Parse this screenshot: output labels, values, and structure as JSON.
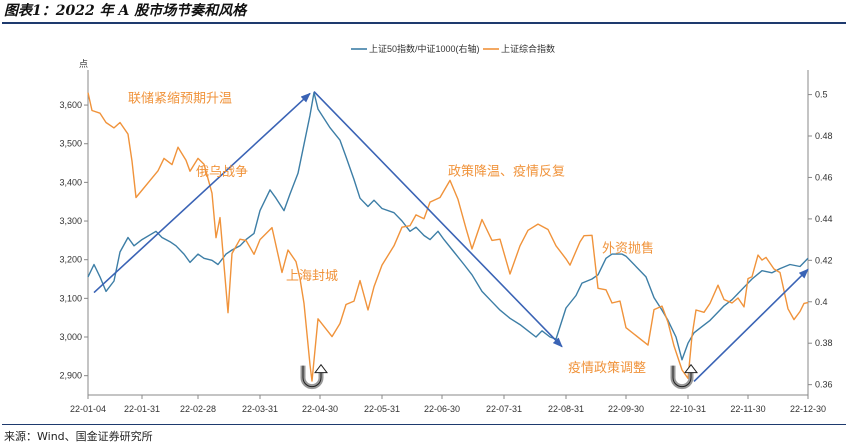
{
  "title": "图表1：2022 年 A 股市场节奏和风格",
  "source": "来源：Wind、国金证券研究所",
  "chart_data": {
    "type": "line",
    "left_axis_label": "点",
    "xlim": [
      "2022-01-04",
      "2022-12-30"
    ],
    "x_ticks": [
      {
        "label": "22-01-04",
        "date": "2022-01-04"
      },
      {
        "label": "22-01-31",
        "date": "2022-01-31"
      },
      {
        "label": "22-02-28",
        "date": "2022-02-28"
      },
      {
        "label": "22-03-31",
        "date": "2022-03-31"
      },
      {
        "label": "22-04-30",
        "date": "2022-04-30"
      },
      {
        "label": "22-05-31",
        "date": "2022-05-31"
      },
      {
        "label": "22-06-30",
        "date": "2022-06-30"
      },
      {
        "label": "22-07-31",
        "date": "2022-07-31"
      },
      {
        "label": "22-08-31",
        "date": "2022-08-31"
      },
      {
        "label": "22-09-30",
        "date": "2022-09-30"
      },
      {
        "label": "22-10-31",
        "date": "2022-10-31"
      },
      {
        "label": "22-11-30",
        "date": "2022-11-30"
      },
      {
        "label": "22-12-30",
        "date": "2022-12-30"
      }
    ],
    "left_ylim": [
      2850,
      3670
    ],
    "left_ticks": [
      "2,900",
      "3,000",
      "3,100",
      "3,200",
      "3,300",
      "3,400",
      "3,500",
      "3,600"
    ],
    "right_ylim": [
      0.355,
      0.508
    ],
    "right_ticks": [
      "0.36",
      "0.38",
      "0.4",
      "0.42",
      "0.44",
      "0.46",
      "0.48",
      "0.5"
    ],
    "series": [
      {
        "name": "上证50指数/中证1000(右轴)",
        "axis": "right",
        "color": "#3d7ea6",
        "points": [
          [
            "2022-01-04",
            0.412
          ],
          [
            "2022-01-07",
            0.418
          ],
          [
            "2022-01-10",
            0.412
          ],
          [
            "2022-01-13",
            0.405
          ],
          [
            "2022-01-17",
            0.41
          ],
          [
            "2022-01-20",
            0.424
          ],
          [
            "2022-01-24",
            0.431
          ],
          [
            "2022-01-27",
            0.427
          ],
          [
            "2022-01-31",
            0.43
          ],
          [
            "2022-02-07",
            0.434
          ],
          [
            "2022-02-10",
            0.431
          ],
          [
            "2022-02-14",
            0.429
          ],
          [
            "2022-02-17",
            0.427
          ],
          [
            "2022-02-21",
            0.423
          ],
          [
            "2022-02-24",
            0.419
          ],
          [
            "2022-02-28",
            0.423
          ],
          [
            "2022-03-03",
            0.421
          ],
          [
            "2022-03-07",
            0.42
          ],
          [
            "2022-03-10",
            0.418
          ],
          [
            "2022-03-14",
            0.423
          ],
          [
            "2022-03-17",
            0.425
          ],
          [
            "2022-03-21",
            0.427
          ],
          [
            "2022-03-24",
            0.43
          ],
          [
            "2022-03-28",
            0.433
          ],
          [
            "2022-03-31",
            0.444
          ],
          [
            "2022-04-05",
            0.454
          ],
          [
            "2022-04-08",
            0.45
          ],
          [
            "2022-04-12",
            0.444
          ],
          [
            "2022-04-15",
            0.452
          ],
          [
            "2022-04-19",
            0.462
          ],
          [
            "2022-04-22",
            0.476
          ],
          [
            "2022-04-25",
            0.49
          ],
          [
            "2022-04-27",
            0.501
          ],
          [
            "2022-04-29",
            0.493
          ],
          [
            "2022-05-05",
            0.484
          ],
          [
            "2022-05-10",
            0.478
          ],
          [
            "2022-05-13",
            0.47
          ],
          [
            "2022-05-17",
            0.459
          ],
          [
            "2022-05-20",
            0.45
          ],
          [
            "2022-05-24",
            0.446
          ],
          [
            "2022-05-27",
            0.449
          ],
          [
            "2022-05-31",
            0.445
          ],
          [
            "2022-06-06",
            0.443
          ],
          [
            "2022-06-10",
            0.439
          ],
          [
            "2022-06-14",
            0.434
          ],
          [
            "2022-06-17",
            0.436
          ],
          [
            "2022-06-21",
            0.432
          ],
          [
            "2022-06-24",
            0.43
          ],
          [
            "2022-06-28",
            0.434
          ],
          [
            "2022-07-01",
            0.43
          ],
          [
            "2022-07-06",
            0.424
          ],
          [
            "2022-07-11",
            0.418
          ],
          [
            "2022-07-15",
            0.413
          ],
          [
            "2022-07-20",
            0.405
          ],
          [
            "2022-07-25",
            0.4
          ],
          [
            "2022-07-29",
            0.396
          ],
          [
            "2022-08-03",
            0.392
          ],
          [
            "2022-08-08",
            0.389
          ],
          [
            "2022-08-12",
            0.386
          ],
          [
            "2022-08-16",
            0.383
          ],
          [
            "2022-08-19",
            0.386
          ],
          [
            "2022-08-23",
            0.383
          ],
          [
            "2022-08-26",
            0.382
          ],
          [
            "2022-08-31",
            0.397
          ],
          [
            "2022-09-05",
            0.403
          ],
          [
            "2022-09-08",
            0.409
          ],
          [
            "2022-09-13",
            0.411
          ],
          [
            "2022-09-16",
            0.413
          ],
          [
            "2022-09-20",
            0.421
          ],
          [
            "2022-09-23",
            0.423
          ],
          [
            "2022-09-28",
            0.423
          ],
          [
            "2022-09-30",
            0.422
          ],
          [
            "2022-10-10",
            0.412
          ],
          [
            "2022-10-14",
            0.402
          ],
          [
            "2022-10-18",
            0.396
          ],
          [
            "2022-10-21",
            0.391
          ],
          [
            "2022-10-25",
            0.383
          ],
          [
            "2022-10-28",
            0.372
          ],
          [
            "2022-10-31",
            0.38
          ],
          [
            "2022-11-03",
            0.385
          ],
          [
            "2022-11-07",
            0.388
          ],
          [
            "2022-11-11",
            0.391
          ],
          [
            "2022-11-15",
            0.395
          ],
          [
            "2022-11-18",
            0.398
          ],
          [
            "2022-11-22",
            0.401
          ],
          [
            "2022-11-25",
            0.404
          ],
          [
            "2022-11-29",
            0.408
          ],
          [
            "2022-12-02",
            0.411
          ],
          [
            "2022-12-07",
            0.415
          ],
          [
            "2022-12-12",
            0.414
          ],
          [
            "2022-12-16",
            0.416
          ],
          [
            "2022-12-21",
            0.418
          ],
          [
            "2022-12-26",
            0.417
          ],
          [
            "2022-12-30",
            0.421
          ]
        ]
      },
      {
        "name": "上证综合指数",
        "axis": "left",
        "color": "#f0933b",
        "points": [
          [
            "2022-01-04",
            3632
          ],
          [
            "2022-01-06",
            3586
          ],
          [
            "2022-01-10",
            3579
          ],
          [
            "2022-01-13",
            3555
          ],
          [
            "2022-01-17",
            3541
          ],
          [
            "2022-01-20",
            3555
          ],
          [
            "2022-01-24",
            3525
          ],
          [
            "2022-01-26",
            3455
          ],
          [
            "2022-01-28",
            3361
          ],
          [
            "2022-02-08",
            3430
          ],
          [
            "2022-02-11",
            3462
          ],
          [
            "2022-02-15",
            3446
          ],
          [
            "2022-02-18",
            3491
          ],
          [
            "2022-02-22",
            3457
          ],
          [
            "2022-02-24",
            3429
          ],
          [
            "2022-02-28",
            3462
          ],
          [
            "2022-03-03",
            3447
          ],
          [
            "2022-03-07",
            3372
          ],
          [
            "2022-03-09",
            3257
          ],
          [
            "2022-03-11",
            3309
          ],
          [
            "2022-03-15",
            3063
          ],
          [
            "2022-03-17",
            3216
          ],
          [
            "2022-03-21",
            3253
          ],
          [
            "2022-03-24",
            3250
          ],
          [
            "2022-03-28",
            3214
          ],
          [
            "2022-03-31",
            3252
          ],
          [
            "2022-04-06",
            3283
          ],
          [
            "2022-04-11",
            3167
          ],
          [
            "2022-04-14",
            3225
          ],
          [
            "2022-04-18",
            3195
          ],
          [
            "2022-04-20",
            3151
          ],
          [
            "2022-04-22",
            3087
          ],
          [
            "2022-04-25",
            2928
          ],
          [
            "2022-04-26",
            2886
          ],
          [
            "2022-04-29",
            3047
          ],
          [
            "2022-05-06",
            3001
          ],
          [
            "2022-05-10",
            3035
          ],
          [
            "2022-05-13",
            3084
          ],
          [
            "2022-05-17",
            3093
          ],
          [
            "2022-05-20",
            3146
          ],
          [
            "2022-05-24",
            3070
          ],
          [
            "2022-05-27",
            3130
          ],
          [
            "2022-05-31",
            3186
          ],
          [
            "2022-06-06",
            3236
          ],
          [
            "2022-06-10",
            3284
          ],
          [
            "2022-06-14",
            3288
          ],
          [
            "2022-06-17",
            3316
          ],
          [
            "2022-06-21",
            3306
          ],
          [
            "2022-06-24",
            3349
          ],
          [
            "2022-06-29",
            3361
          ],
          [
            "2022-07-04",
            3405
          ],
          [
            "2022-07-08",
            3356
          ],
          [
            "2022-07-12",
            3281
          ],
          [
            "2022-07-15",
            3228
          ],
          [
            "2022-07-20",
            3304
          ],
          [
            "2022-07-25",
            3250
          ],
          [
            "2022-07-29",
            3253
          ],
          [
            "2022-08-03",
            3163
          ],
          [
            "2022-08-08",
            3236
          ],
          [
            "2022-08-12",
            3276
          ],
          [
            "2022-08-17",
            3292
          ],
          [
            "2022-08-22",
            3278
          ],
          [
            "2022-08-26",
            3236
          ],
          [
            "2022-08-31",
            3202
          ],
          [
            "2022-09-02",
            3186
          ],
          [
            "2022-09-07",
            3246
          ],
          [
            "2022-09-09",
            3262
          ],
          [
            "2022-09-13",
            3263
          ],
          [
            "2022-09-16",
            3126
          ],
          [
            "2022-09-20",
            3122
          ],
          [
            "2022-09-23",
            3088
          ],
          [
            "2022-09-27",
            3093
          ],
          [
            "2022-09-30",
            3024
          ],
          [
            "2022-10-11",
            2979
          ],
          [
            "2022-10-14",
            3071
          ],
          [
            "2022-10-18",
            3080
          ],
          [
            "2022-10-21",
            3038
          ],
          [
            "2022-10-24",
            2977
          ],
          [
            "2022-10-28",
            2915
          ],
          [
            "2022-10-31",
            2893
          ],
          [
            "2022-11-02",
            3003
          ],
          [
            "2022-11-04",
            3070
          ],
          [
            "2022-11-08",
            3064
          ],
          [
            "2022-11-11",
            3087
          ],
          [
            "2022-11-15",
            3134
          ],
          [
            "2022-11-18",
            3097
          ],
          [
            "2022-11-22",
            3088
          ],
          [
            "2022-11-25",
            3101
          ],
          [
            "2022-11-28",
            3078
          ],
          [
            "2022-11-30",
            3151
          ],
          [
            "2022-12-02",
            3156
          ],
          [
            "2022-12-05",
            3212
          ],
          [
            "2022-12-07",
            3199
          ],
          [
            "2022-12-09",
            3206
          ],
          [
            "2022-12-13",
            3176
          ],
          [
            "2022-12-16",
            3167
          ],
          [
            "2022-12-20",
            3073
          ],
          [
            "2022-12-23",
            3045
          ],
          [
            "2022-12-26",
            3066
          ],
          [
            "2022-12-28",
            3087
          ],
          [
            "2022-12-30",
            3089
          ]
        ]
      }
    ],
    "trend_arrows": [
      {
        "from": [
          "2022-01-07",
          3115
        ],
        "to": [
          "2022-04-25",
          3630
        ]
      },
      {
        "from": [
          "2022-04-27",
          3635
        ],
        "to": [
          "2022-08-29",
          2975
        ]
      },
      {
        "from": [
          "2022-11-03",
          2885
        ],
        "to": [
          "2022-12-30",
          3175
        ]
      }
    ],
    "reversal_markers": [
      {
        "date": "2022-04-27",
        "value": 2900
      },
      {
        "date": "2022-10-29",
        "value": 2900
      }
    ],
    "annotations": [
      {
        "text": "联储紧缩预期升温",
        "date": "2022-01-24",
        "value": 3607
      },
      {
        "text": "俄乌战争",
        "date": "2022-02-27",
        "value": 3416
      },
      {
        "text": "上海封城",
        "date": "2022-04-13",
        "value": 3147
      },
      {
        "text": "政策降温、疫情反复",
        "date": "2022-07-03",
        "value": 3418
      },
      {
        "text": "外资抛售",
        "date": "2022-09-18",
        "value": 3218
      },
      {
        "text": "疫情政策调整",
        "date": "2022-09-01",
        "value": 2910
      }
    ],
    "legend": [
      {
        "label": "上证50指数/中证1000(右轴)",
        "color": "#3d7ea6"
      },
      {
        "label": "上证综合指数",
        "color": "#f0933b"
      }
    ],
    "arrow_color": "#3a63b5"
  }
}
